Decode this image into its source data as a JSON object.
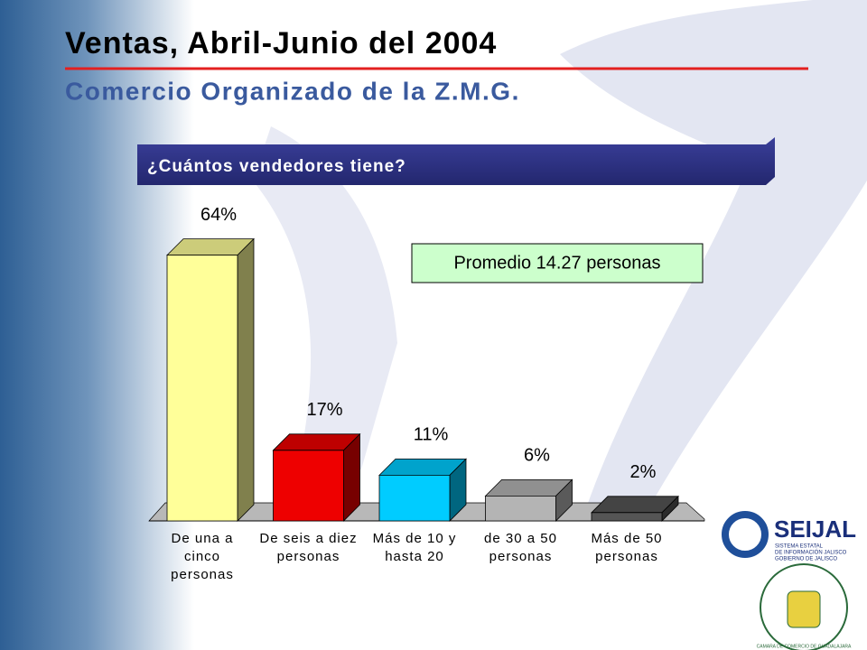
{
  "title": "Ventas, Abril-Junio del 2004",
  "subtitle": "Comercio Organizado de la Z.M.G.",
  "logos": {
    "seijal": "SEIJAL",
    "seijal_lines": [
      "SISTEMA ESTATAL",
      "DE INFORMACIÓN JALISCO",
      "GOBIERNO DE JALISCO"
    ],
    "camara": "CAMARA DE COMERCIO DE GUADALAJARA"
  },
  "chart_data": {
    "type": "bar3d",
    "title": "¿Cuántos vendedores tiene?",
    "annotation": "Promedio 14.27 personas",
    "categories": [
      "De una a cinco personas",
      "De seis a diez personas",
      "Más de 10 y hasta 20",
      "de 30 a 50 personas",
      "Más de 50 personas"
    ],
    "values": [
      64,
      17,
      11,
      6,
      2
    ],
    "value_labels": [
      "64%",
      "17%",
      "11%",
      "6%",
      "2%"
    ],
    "colors": [
      "#ffff99",
      "#ee0000",
      "#00ccff",
      "#b4b4b4",
      "#555555"
    ]
  }
}
